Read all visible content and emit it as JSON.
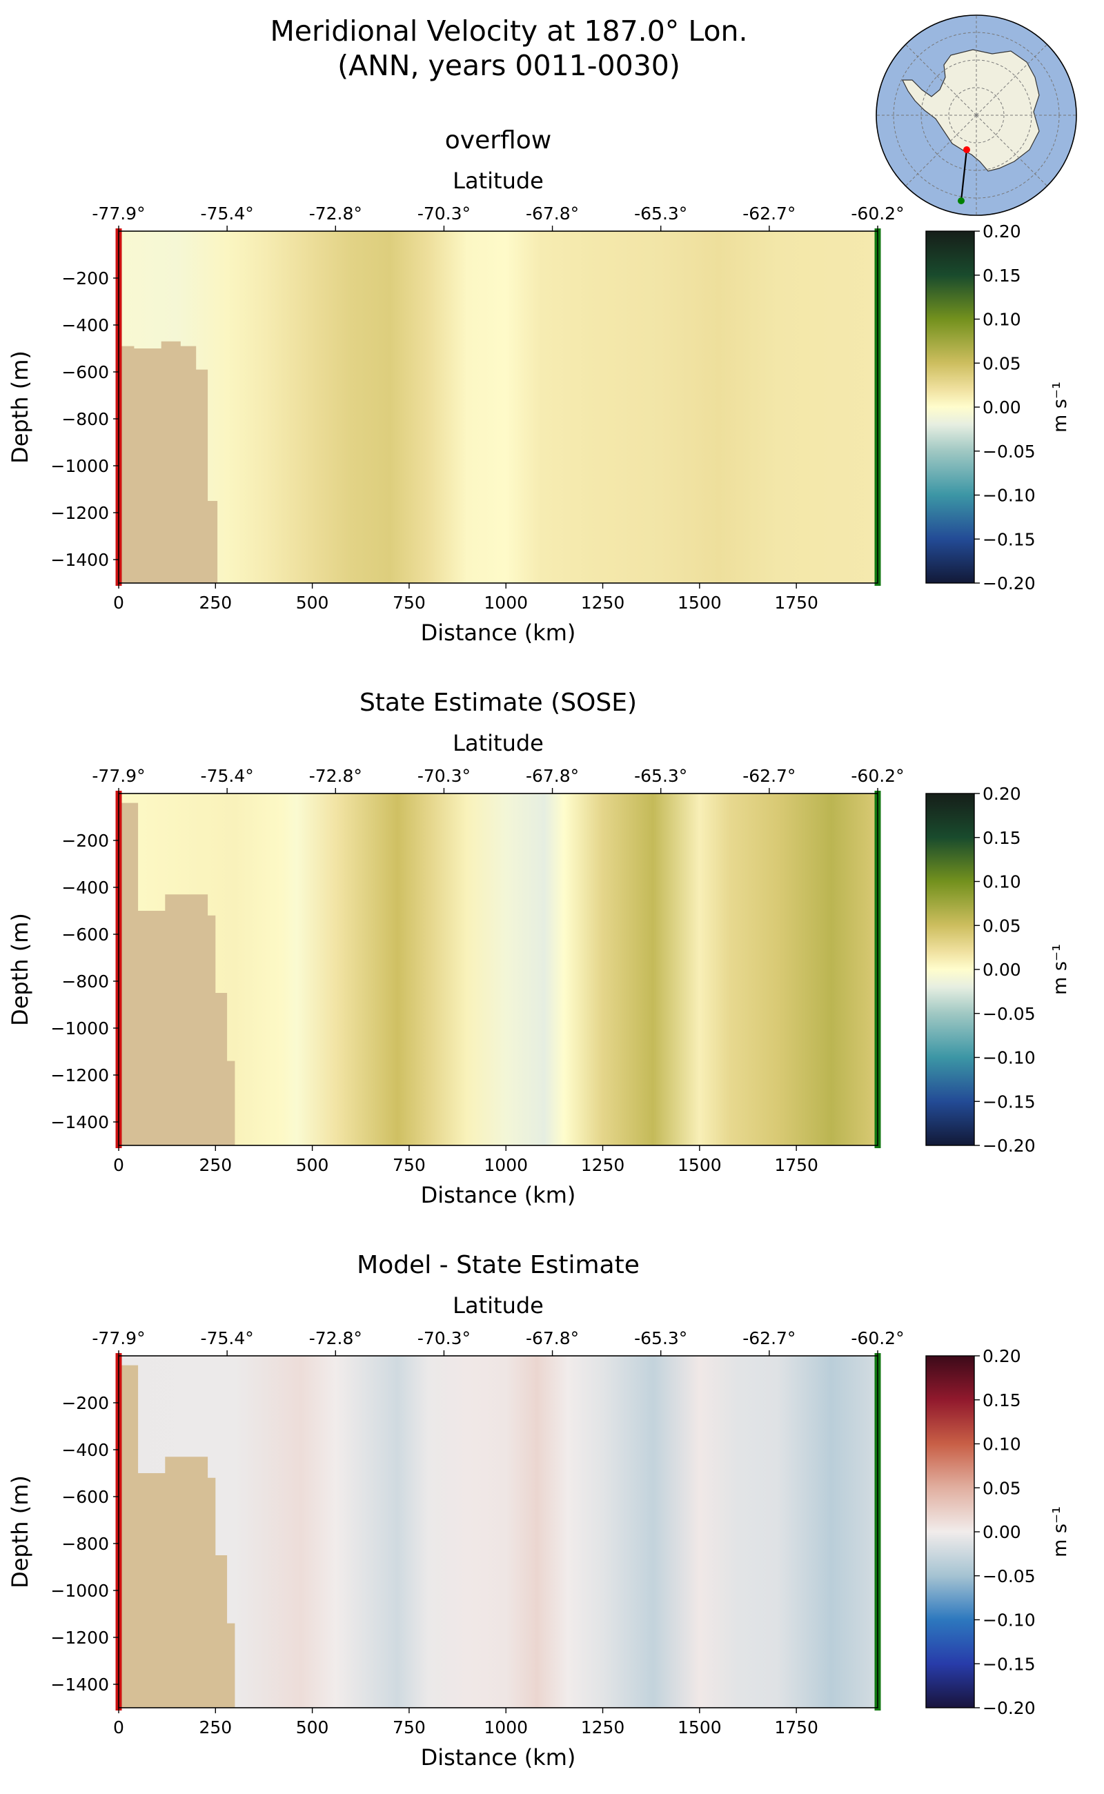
{
  "figure": {
    "title_line1": "Meridional Velocity at 187.0° Lon.",
    "title_line2": "(ANN, years 0011-0030)"
  },
  "colors": {
    "land": "#d6bf96",
    "transect_start": "#cc1111",
    "transect_end": "#117711",
    "ocean_map": "#9ab7df",
    "antarctica": "#f0efdf"
  },
  "inset_map": {
    "projection": "south polar stereographic",
    "start_marker_color": "red",
    "end_marker_color": "green"
  },
  "chart_data": [
    {
      "type": "heatmap",
      "title": "overflow",
      "xlabel": "Distance (km)",
      "ylabel": "Depth (m)",
      "top_axis_label": "Latitude",
      "xlim": [
        0,
        1960
      ],
      "ylim": [
        -1500,
        0
      ],
      "xticks": [
        0,
        250,
        500,
        750,
        1000,
        1250,
        1500,
        1750
      ],
      "yticks": [
        -200,
        -400,
        -600,
        -800,
        -1000,
        -1200,
        -1400
      ],
      "lat_ticks": [
        {
          "km": 0,
          "label": "-77.9°"
        },
        {
          "km": 280,
          "label": "-75.4°"
        },
        {
          "km": 560,
          "label": "-72.8°"
        },
        {
          "km": 840,
          "label": "-70.3°"
        },
        {
          "km": 1120,
          "label": "-67.8°"
        },
        {
          "km": 1400,
          "label": "-65.3°"
        },
        {
          "km": 1680,
          "label": "-62.7°"
        },
        {
          "km": 1960,
          "label": "-60.2°"
        }
      ],
      "colormap": "delta",
      "colorbar": {
        "label": "m s⁻¹",
        "vmin": -0.2,
        "vmax": 0.2,
        "ticks": [
          "0.20",
          "0.15",
          "0.10",
          "0.05",
          "0.00",
          "−0.05",
          "−0.10",
          "−0.15",
          "−0.20"
        ]
      },
      "bathymetry": [
        [
          0,
          -1500
        ],
        [
          0,
          -490
        ],
        [
          40,
          -490
        ],
        [
          40,
          -500
        ],
        [
          110,
          -500
        ],
        [
          110,
          -470
        ],
        [
          160,
          -470
        ],
        [
          160,
          -490
        ],
        [
          200,
          -490
        ],
        [
          200,
          -590
        ],
        [
          230,
          -590
        ],
        [
          230,
          -1150
        ],
        [
          255,
          -1150
        ],
        [
          255,
          -1500
        ]
      ],
      "velocity_columns": [
        {
          "km": 0,
          "v": -0.005
        },
        {
          "km": 150,
          "v": -0.008
        },
        {
          "km": 280,
          "v": 0.005
        },
        {
          "km": 380,
          "v": 0.012
        },
        {
          "km": 520,
          "v": 0.025
        },
        {
          "km": 600,
          "v": 0.032
        },
        {
          "km": 700,
          "v": 0.036
        },
        {
          "km": 800,
          "v": 0.022
        },
        {
          "km": 900,
          "v": 0.004
        },
        {
          "km": 1000,
          "v": 0.002
        },
        {
          "km": 1090,
          "v": 0.012
        },
        {
          "km": 1250,
          "v": 0.015
        },
        {
          "km": 1400,
          "v": 0.017
        },
        {
          "km": 1550,
          "v": 0.022
        },
        {
          "km": 1700,
          "v": 0.016
        },
        {
          "km": 1960,
          "v": 0.014
        }
      ]
    },
    {
      "type": "heatmap",
      "title": "State Estimate (SOSE)",
      "xlabel": "Distance (km)",
      "ylabel": "Depth (m)",
      "top_axis_label": "Latitude",
      "xlim": [
        0,
        1960
      ],
      "ylim": [
        -1500,
        0
      ],
      "xticks": [
        0,
        250,
        500,
        750,
        1000,
        1250,
        1500,
        1750
      ],
      "yticks": [
        -200,
        -400,
        -600,
        -800,
        -1000,
        -1200,
        -1400
      ],
      "lat_ticks": [
        {
          "km": 0,
          "label": "-77.9°"
        },
        {
          "km": 280,
          "label": "-75.4°"
        },
        {
          "km": 560,
          "label": "-72.8°"
        },
        {
          "km": 840,
          "label": "-70.3°"
        },
        {
          "km": 1120,
          "label": "-67.8°"
        },
        {
          "km": 1400,
          "label": "-65.3°"
        },
        {
          "km": 1680,
          "label": "-62.7°"
        },
        {
          "km": 1960,
          "label": "-60.2°"
        }
      ],
      "colormap": "delta",
      "colorbar": {
        "label": "m s⁻¹",
        "vmin": -0.2,
        "vmax": 0.2,
        "ticks": [
          "0.20",
          "0.15",
          "0.10",
          "0.05",
          "0.00",
          "−0.05",
          "−0.10",
          "−0.15",
          "−0.20"
        ]
      },
      "bathymetry": [
        [
          0,
          -1500
        ],
        [
          0,
          -40
        ],
        [
          50,
          -40
        ],
        [
          50,
          -500
        ],
        [
          120,
          -500
        ],
        [
          120,
          -430
        ],
        [
          230,
          -430
        ],
        [
          230,
          -520
        ],
        [
          250,
          -520
        ],
        [
          250,
          -850
        ],
        [
          280,
          -850
        ],
        [
          280,
          -1140
        ],
        [
          300,
          -1140
        ],
        [
          300,
          -1500
        ]
      ],
      "velocity_columns": [
        {
          "km": 0,
          "v": 0.003
        },
        {
          "km": 300,
          "v": 0.008
        },
        {
          "km": 420,
          "v": 0.003
        },
        {
          "km": 460,
          "v": -0.004
        },
        {
          "km": 560,
          "v": 0.018
        },
        {
          "km": 720,
          "v": 0.048
        },
        {
          "km": 800,
          "v": 0.03
        },
        {
          "km": 900,
          "v": 0.008
        },
        {
          "km": 1000,
          "v": -0.01
        },
        {
          "km": 1100,
          "v": -0.02
        },
        {
          "km": 1150,
          "v": 0.0
        },
        {
          "km": 1250,
          "v": 0.03
        },
        {
          "km": 1380,
          "v": 0.055
        },
        {
          "km": 1500,
          "v": 0.01
        },
        {
          "km": 1580,
          "v": 0.028
        },
        {
          "km": 1700,
          "v": 0.04
        },
        {
          "km": 1840,
          "v": 0.06
        },
        {
          "km": 1960,
          "v": 0.04
        }
      ]
    },
    {
      "type": "heatmap",
      "title": "Model - State Estimate",
      "xlabel": "Distance (km)",
      "ylabel": "Depth (m)",
      "top_axis_label": "Latitude",
      "xlim": [
        0,
        1960
      ],
      "ylim": [
        -1500,
        0
      ],
      "xticks": [
        0,
        250,
        500,
        750,
        1000,
        1250,
        1500,
        1750
      ],
      "yticks": [
        -200,
        -400,
        -600,
        -800,
        -1000,
        -1200,
        -1400
      ],
      "lat_ticks": [
        {
          "km": 0,
          "label": "-77.9°"
        },
        {
          "km": 280,
          "label": "-75.4°"
        },
        {
          "km": 560,
          "label": "-72.8°"
        },
        {
          "km": 840,
          "label": "-70.3°"
        },
        {
          "km": 1120,
          "label": "-67.8°"
        },
        {
          "km": 1400,
          "label": "-65.3°"
        },
        {
          "km": 1680,
          "label": "-62.7°"
        },
        {
          "km": 1960,
          "label": "-60.2°"
        }
      ],
      "colormap": "balance",
      "colorbar": {
        "label": "m s⁻¹",
        "vmin": -0.2,
        "vmax": 0.2,
        "ticks": [
          "0.20",
          "0.15",
          "0.10",
          "0.05",
          "0.00",
          "−0.05",
          "−0.10",
          "−0.15",
          "−0.20"
        ]
      },
      "bathymetry": [
        [
          0,
          -1500
        ],
        [
          0,
          -40
        ],
        [
          50,
          -40
        ],
        [
          50,
          -500
        ],
        [
          120,
          -500
        ],
        [
          120,
          -430
        ],
        [
          230,
          -430
        ],
        [
          230,
          -520
        ],
        [
          250,
          -520
        ],
        [
          250,
          -850
        ],
        [
          280,
          -850
        ],
        [
          280,
          -1140
        ],
        [
          300,
          -1140
        ],
        [
          300,
          -1500
        ]
      ],
      "velocity_columns": [
        {
          "km": 0,
          "v": -0.004
        },
        {
          "km": 300,
          "v": -0.003
        },
        {
          "km": 470,
          "v": 0.012
        },
        {
          "km": 560,
          "v": 0.0
        },
        {
          "km": 720,
          "v": -0.022
        },
        {
          "km": 800,
          "v": -0.004
        },
        {
          "km": 900,
          "v": 0.003
        },
        {
          "km": 1000,
          "v": 0.005
        },
        {
          "km": 1080,
          "v": 0.018
        },
        {
          "km": 1160,
          "v": 0.0
        },
        {
          "km": 1250,
          "v": -0.01
        },
        {
          "km": 1380,
          "v": -0.03
        },
        {
          "km": 1500,
          "v": 0.003
        },
        {
          "km": 1600,
          "v": -0.01
        },
        {
          "km": 1700,
          "v": -0.012
        },
        {
          "km": 1840,
          "v": -0.036
        },
        {
          "km": 1960,
          "v": -0.02
        }
      ]
    }
  ]
}
